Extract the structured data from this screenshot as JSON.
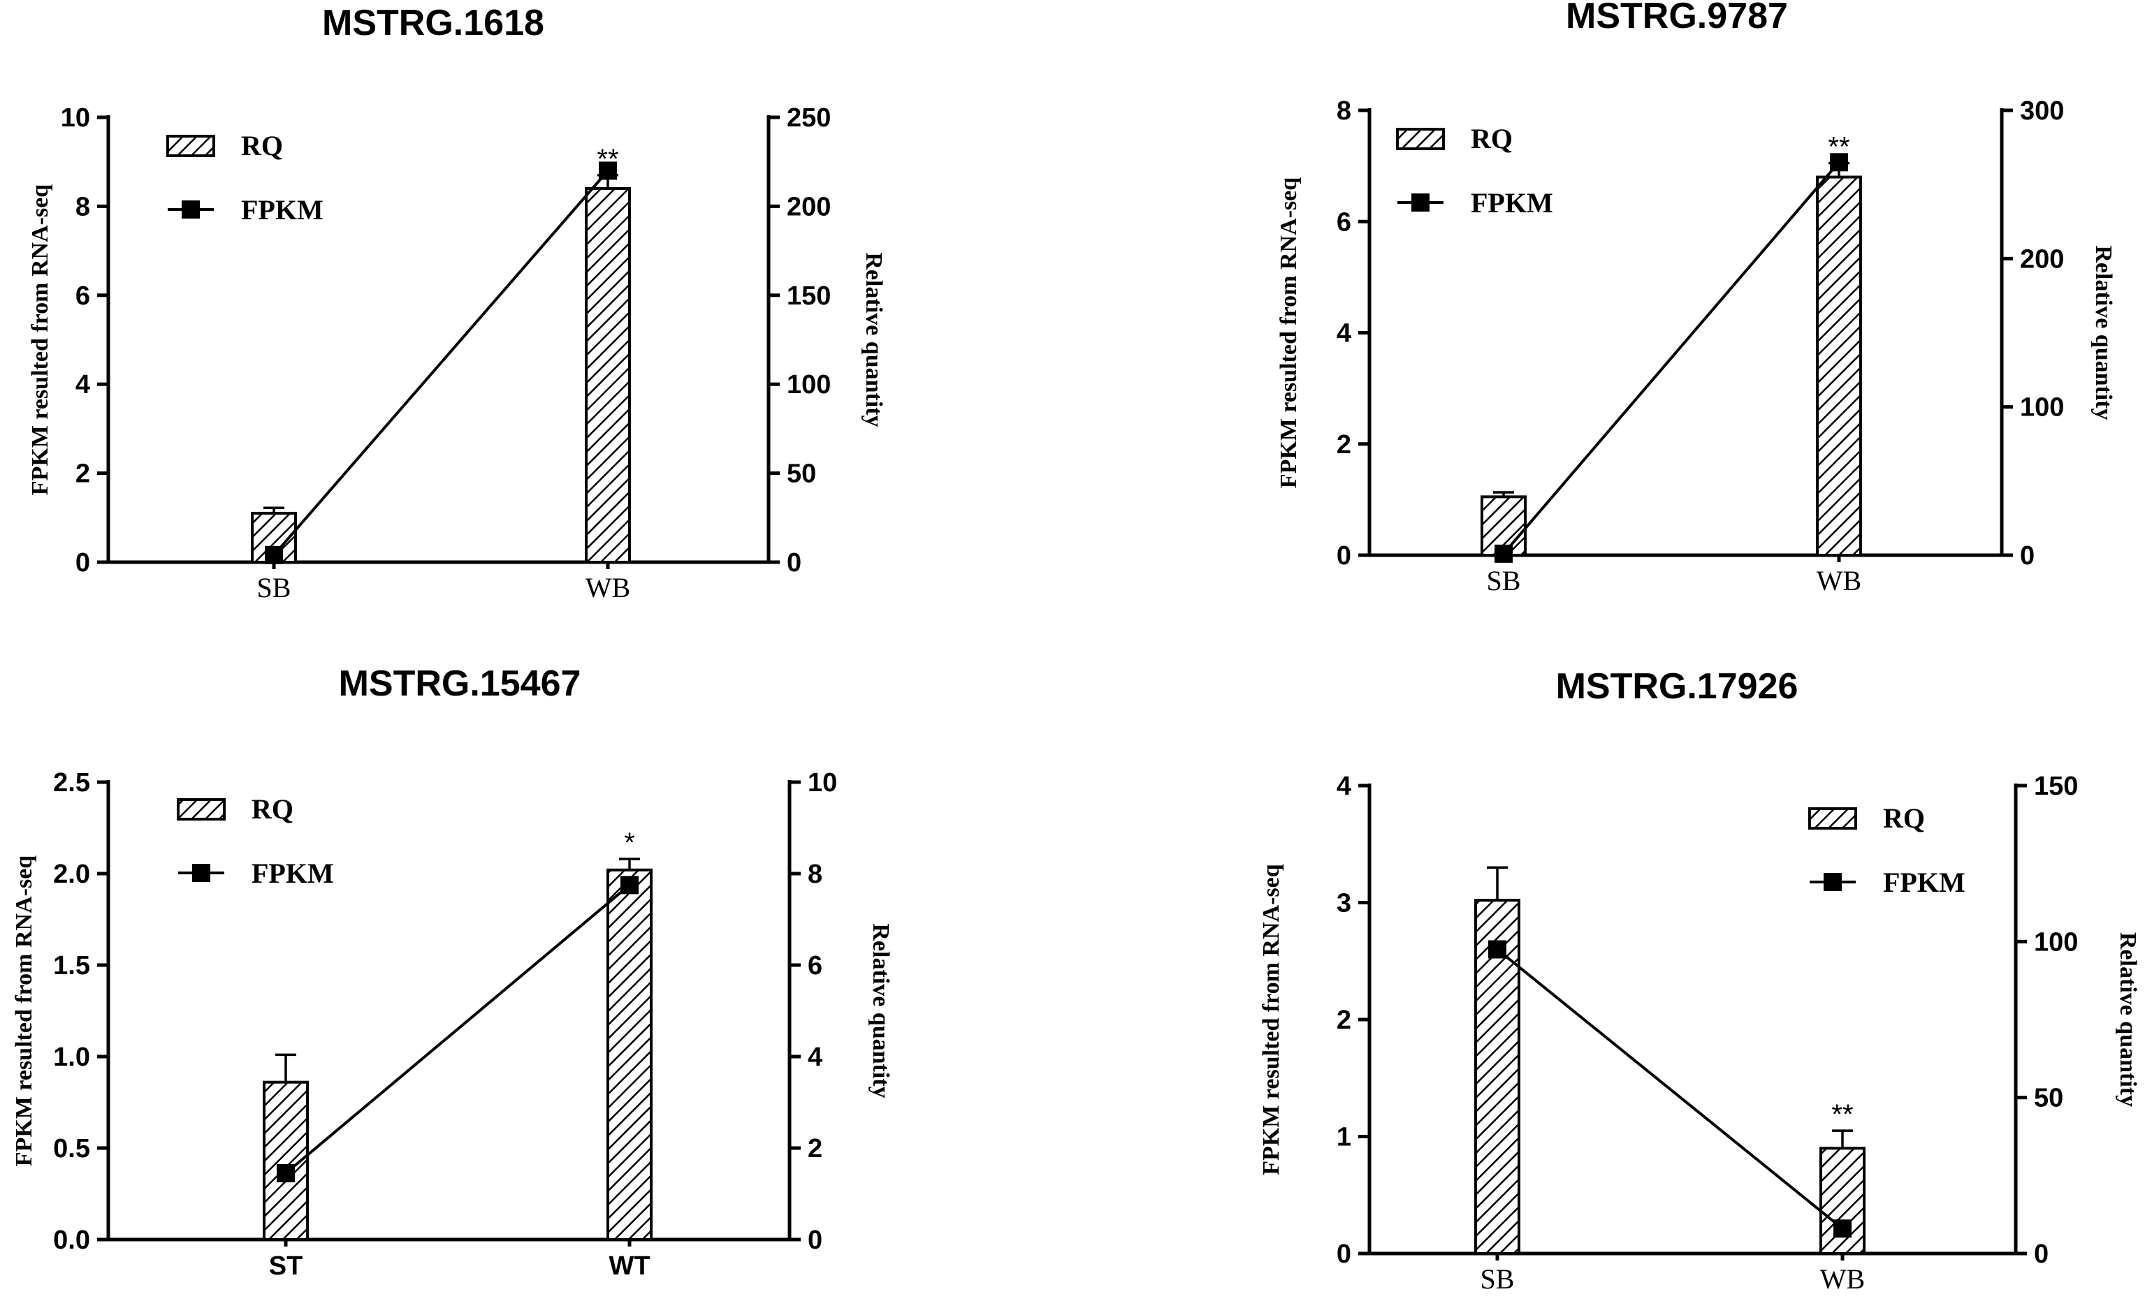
{
  "chart_data": [
    {
      "type": "bar+line",
      "title": "MSTRG.1618",
      "categories": [
        "SB",
        "WB"
      ],
      "category_style": "serif",
      "ylabel_left": "FPKM resulted from RNA-seq",
      "ylabel_right": "Relative quantity",
      "ylim_left": [
        0,
        10
      ],
      "yticks_left": [
        0,
        2,
        4,
        6,
        8,
        10
      ],
      "ytick_labels_left": [
        "0",
        "2",
        "4",
        "6",
        "8",
        "10"
      ],
      "ylim_right": [
        0,
        250
      ],
      "yticks_right": [
        0,
        50,
        100,
        150,
        200,
        250
      ],
      "ytick_labels_right": [
        "0",
        "50",
        "100",
        "150",
        "200",
        "250"
      ],
      "series": [
        {
          "name": "RQ",
          "kind": "bar",
          "axis": "left",
          "values": [
            1.1,
            8.4
          ],
          "errors": [
            0.12,
            0.3
          ]
        },
        {
          "name": "FPKM",
          "kind": "line",
          "axis": "right",
          "values": [
            4,
            220
          ]
        }
      ],
      "significance": [
        "",
        "**"
      ],
      "legend": [
        "RQ",
        "FPKM"
      ],
      "legend_position": "top-left"
    },
    {
      "type": "bar+line",
      "title": "MSTRG.9787",
      "categories": [
        "SB",
        "WB"
      ],
      "category_style": "serif",
      "ylabel_left": "FPKM resulted from RNA-seq",
      "ylabel_right": "Relative quantity",
      "ylim_left": [
        0,
        8
      ],
      "yticks_left": [
        0,
        2,
        4,
        6,
        8
      ],
      "ytick_labels_left": [
        "0",
        "2",
        "4",
        "6",
        "8"
      ],
      "ylim_right": [
        0,
        300
      ],
      "yticks_right": [
        0,
        100,
        200,
        300
      ],
      "ytick_labels_right": [
        "0",
        "100",
        "200",
        "300"
      ],
      "series": [
        {
          "name": "RQ",
          "kind": "bar",
          "axis": "left",
          "values": [
            1.05,
            6.8
          ],
          "errors": [
            0.08,
            0.25
          ]
        },
        {
          "name": "FPKM",
          "kind": "line",
          "axis": "right",
          "values": [
            1,
            265
          ]
        }
      ],
      "significance": [
        "",
        "**"
      ],
      "legend": [
        "RQ",
        "FPKM"
      ],
      "legend_position": "top-left"
    },
    {
      "type": "bar+line",
      "title": "MSTRG.15467",
      "categories": [
        "ST",
        "WT"
      ],
      "category_style": "bold",
      "ylabel_left": "FPKM resulted from RNA-seq",
      "ylabel_right": "Relative quantity",
      "ylim_left": [
        0,
        2.5
      ],
      "yticks_left": [
        0,
        0.5,
        1.0,
        1.5,
        2.0,
        2.5
      ],
      "ytick_labels_left": [
        "0.0",
        "0.5",
        "1.0",
        "1.5",
        "2.0",
        "2.5"
      ],
      "ylim_right": [
        0,
        10
      ],
      "yticks_right": [
        0,
        2,
        4,
        6,
        8,
        10
      ],
      "ytick_labels_right": [
        "0",
        "2",
        "4",
        "6",
        "8",
        "10"
      ],
      "series": [
        {
          "name": "RQ",
          "kind": "bar",
          "axis": "left",
          "values": [
            0.86,
            2.02
          ],
          "errors": [
            0.15,
            0.06
          ]
        },
        {
          "name": "FPKM",
          "kind": "line",
          "axis": "right",
          "values": [
            1.45,
            7.75
          ]
        }
      ],
      "significance": [
        "",
        "*"
      ],
      "legend": [
        "RQ",
        "FPKM"
      ],
      "legend_position": "top-left"
    },
    {
      "type": "bar+line",
      "title": "MSTRG.17926",
      "categories": [
        "SB",
        "WB"
      ],
      "category_style": "serif",
      "ylabel_left": "FPKM resulted from RNA-seq",
      "ylabel_right": "Relative quantity",
      "ylim_left": [
        0,
        4
      ],
      "yticks_left": [
        0,
        1,
        2,
        3,
        4
      ],
      "ytick_labels_left": [
        "0",
        "1",
        "2",
        "3",
        "4"
      ],
      "ylim_right": [
        0,
        150
      ],
      "yticks_right": [
        0,
        50,
        100,
        150
      ],
      "ytick_labels_right": [
        "0",
        "50",
        "100",
        "150"
      ],
      "series": [
        {
          "name": "RQ",
          "kind": "bar",
          "axis": "left",
          "values": [
            3.02,
            0.9
          ],
          "errors": [
            0.28,
            0.15
          ]
        },
        {
          "name": "FPKM",
          "kind": "line",
          "axis": "right",
          "values": [
            97.5,
            8
          ]
        }
      ],
      "significance": [
        "",
        "**"
      ],
      "legend": [
        "RQ",
        "FPKM"
      ],
      "legend_position": "top-right"
    }
  ]
}
